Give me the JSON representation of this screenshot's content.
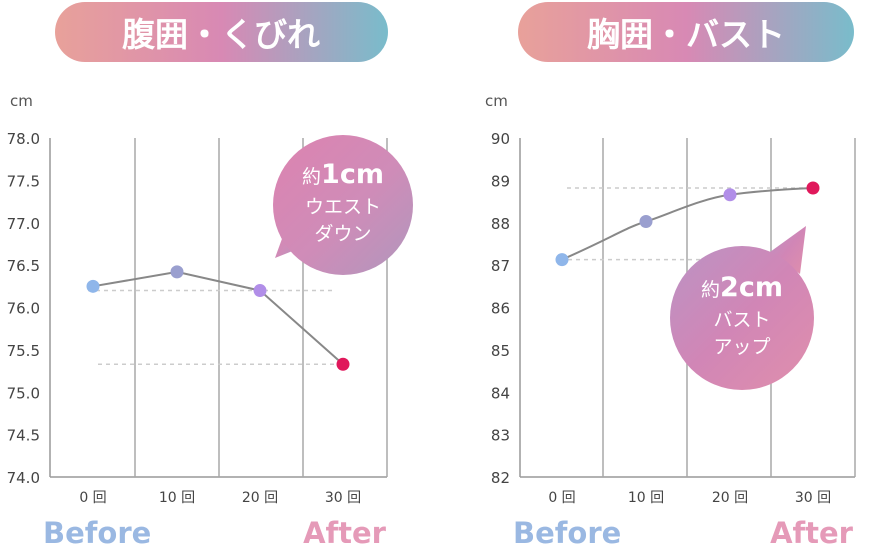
{
  "colors": {
    "before": "#9ab8e2",
    "after": "#e59ab8",
    "line": "#888888",
    "guide": "#cccccc",
    "point_colors": [
      "#8fb6ea",
      "#9a9fcf",
      "#b18ee8",
      "#e0185b"
    ]
  },
  "chart_data": [
    {
      "type": "line",
      "title": "腹囲・くびれ",
      "unit": "cm",
      "categories": [
        "0 回",
        "10 回",
        "20 回",
        "30 回"
      ],
      "values": [
        76.25,
        76.42,
        76.2,
        75.33
      ],
      "ylim": [
        74.0,
        78.0
      ],
      "yticks": [
        "78.0",
        "77.5",
        "77.0",
        "76.5",
        "76.0",
        "75.5",
        "75.0",
        "74.5",
        "74.0"
      ],
      "ytick_values": [
        78.0,
        77.5,
        77.0,
        76.5,
        76.0,
        75.5,
        75.0,
        74.5,
        74.0
      ],
      "bubble": {
        "prefix": "約",
        "amount": "1cm",
        "line1": "ウエスト",
        "line2": "ダウン"
      },
      "before_label": "Before",
      "after_label": "After",
      "grid": true
    },
    {
      "type": "line",
      "title": "胸囲・バスト",
      "unit": "cm",
      "categories": [
        "0 回",
        "10 回",
        "20 回",
        "30 回"
      ],
      "values": [
        87.13,
        88.03,
        88.66,
        88.82
      ],
      "ylim": [
        82,
        90
      ],
      "yticks": [
        "90",
        "89",
        "88",
        "87",
        "86",
        "85",
        "84",
        "83",
        "82"
      ],
      "ytick_values": [
        90,
        89,
        88,
        87,
        86,
        85,
        84,
        83,
        82
      ],
      "bubble": {
        "prefix": "約",
        "amount": "2cm",
        "line1": "バスト",
        "line2": "アップ"
      },
      "before_label": "Before",
      "after_label": "After",
      "grid": true
    }
  ]
}
